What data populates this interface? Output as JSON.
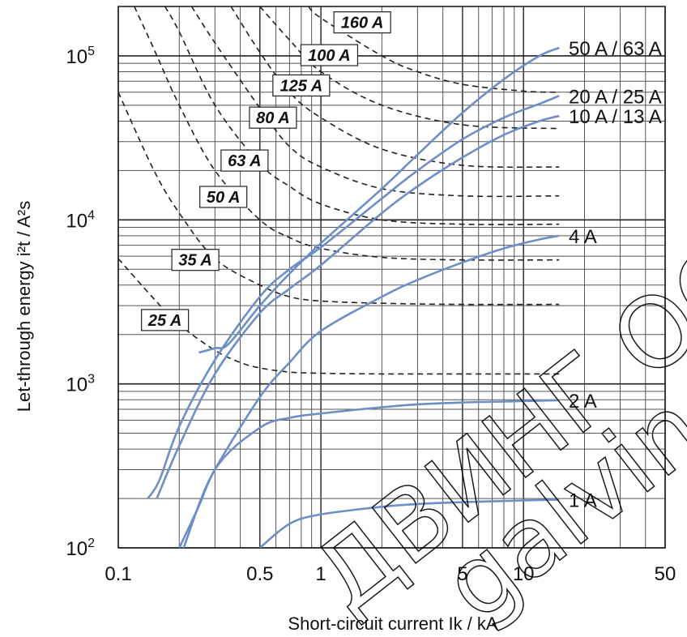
{
  "chart_data": {
    "type": "line",
    "xscale": "log",
    "yscale": "log",
    "xlim": [
      0.1,
      50
    ],
    "ylim": [
      100,
      200000
    ],
    "grid": true,
    "xlabel": "Short-circuit current Ik / kA",
    "ylabel": "Let-through energy i²t / A²s",
    "xticks": [
      {
        "value": 0.1,
        "label": "0.1"
      },
      {
        "value": 0.5,
        "label": "0.5"
      },
      {
        "value": 1,
        "label": "1"
      },
      {
        "value": 5,
        "label": "5"
      },
      {
        "value": 10,
        "label": "10"
      },
      {
        "value": 50,
        "label": "50"
      }
    ],
    "yticks": [
      {
        "value": 100,
        "base": "10",
        "exp": "2"
      },
      {
        "value": 1000,
        "base": "10",
        "exp": "3"
      },
      {
        "value": 10000,
        "base": "10",
        "exp": "4"
      },
      {
        "value": 100000,
        "base": "10",
        "exp": "5"
      }
    ],
    "colors": {
      "mcb": "#6e8ec8",
      "fuse": "#222222",
      "grid": "#555555"
    },
    "series": [
      {
        "name": "50 A / 63 A",
        "style": "solid",
        "x": [
          0.25,
          0.3,
          0.35,
          0.5,
          0.7,
          1,
          2,
          3,
          5,
          8,
          12,
          15
        ],
        "y": [
          1550,
          1650,
          1750,
          3000,
          4700,
          7200,
          15500,
          25000,
          45000,
          72000,
          100000,
          112000
        ]
      },
      {
        "name": "20 A / 25 A",
        "style": "solid",
        "x": [
          0.14,
          0.16,
          0.2,
          0.3,
          0.5,
          0.7,
          1,
          2,
          3,
          5,
          8,
          12,
          15
        ],
        "y": [
          200,
          260,
          550,
          1400,
          3400,
          5000,
          6800,
          13500,
          20000,
          31000,
          42000,
          51000,
          57000
        ]
      },
      {
        "name": "10 A / 13 A",
        "style": "solid",
        "x": [
          0.155,
          0.2,
          0.3,
          0.5,
          0.7,
          1,
          2,
          3,
          5,
          8,
          12,
          15
        ],
        "y": [
          200,
          420,
          1150,
          2700,
          3800,
          5300,
          11000,
          16000,
          24000,
          33000,
          40000,
          43000
        ]
      },
      {
        "name": "4 A",
        "style": "solid",
        "x": [
          0.2,
          0.25,
          0.3,
          0.5,
          0.7,
          1,
          2,
          3,
          5,
          8,
          12,
          15
        ],
        "y": [
          100,
          180,
          300,
          830,
          1350,
          2100,
          3400,
          4300,
          5500,
          6700,
          7600,
          8000
        ]
      },
      {
        "name": "2 A",
        "style": "solid",
        "x": [
          0.21,
          0.3,
          0.5,
          0.7,
          1,
          2,
          3,
          5,
          8,
          12,
          15
        ],
        "y": [
          100,
          300,
          540,
          620,
          660,
          720,
          750,
          770,
          780,
          790,
          795
        ]
      },
      {
        "name": "1 A",
        "style": "solid",
        "x": [
          0.5,
          0.7,
          1,
          2,
          3,
          5,
          8,
          12,
          15
        ],
        "y": [
          100,
          140,
          160,
          178,
          185,
          190,
          193,
          196,
          197
        ]
      },
      {
        "name": "25 A",
        "style": "dashed",
        "x": [
          0.1,
          0.15,
          0.2,
          0.3,
          0.4,
          0.5,
          0.7,
          1,
          2,
          5,
          15
        ],
        "y": [
          5800,
          3300,
          2300,
          1600,
          1350,
          1250,
          1180,
          1160,
          1150,
          1150,
          1150
        ]
      },
      {
        "name": "35 A",
        "style": "dashed",
        "x": [
          0.1,
          0.15,
          0.2,
          0.3,
          0.5,
          0.7,
          1,
          2,
          5,
          15
        ],
        "y": [
          60000,
          20000,
          11000,
          5800,
          4000,
          3400,
          3200,
          3100,
          3050,
          3050
        ]
      },
      {
        "name": "50 A",
        "style": "dashed",
        "x": [
          0.12,
          0.15,
          0.2,
          0.3,
          0.5,
          0.7,
          1,
          2,
          5,
          15
        ],
        "y": [
          200000,
          110000,
          50000,
          20000,
          10000,
          7800,
          6700,
          5900,
          5700,
          5700
        ]
      },
      {
        "name": "63 A",
        "style": "dashed",
        "x": [
          0.17,
          0.2,
          0.3,
          0.5,
          0.7,
          1,
          2,
          5,
          15
        ],
        "y": [
          200000,
          140000,
          50000,
          22000,
          16000,
          12500,
          10000,
          9400,
          9400
        ]
      },
      {
        "name": "80 A",
        "style": "dashed",
        "x": [
          0.23,
          0.3,
          0.5,
          0.7,
          1,
          2,
          5,
          15
        ],
        "y": [
          200000,
          120000,
          48000,
          28000,
          21000,
          15500,
          14000,
          14000
        ]
      },
      {
        "name": "125 A",
        "style": "dashed",
        "x": [
          0.36,
          0.5,
          0.7,
          1,
          2,
          5,
          15
        ],
        "y": [
          200000,
          105000,
          60000,
          42000,
          27000,
          21500,
          21000
        ]
      },
      {
        "name": "100 A",
        "style": "dashed",
        "x": [
          0.5,
          0.7,
          1,
          2,
          5,
          15
        ],
        "y": [
          200000,
          125000,
          80000,
          50000,
          38000,
          36000
        ]
      },
      {
        "name": "160 A",
        "style": "dashed",
        "x": [
          0.87,
          1,
          2,
          3,
          5,
          10,
          15
        ],
        "y": [
          200000,
          170000,
          100000,
          80000,
          67000,
          61000,
          60000
        ]
      }
    ],
    "fuse_labels": [
      {
        "text": "160 A",
        "x": 1.6,
        "y": 160000
      },
      {
        "text": "100 A",
        "x": 1.1,
        "y": 101000
      },
      {
        "text": "125 A",
        "x": 0.8,
        "y": 66000
      },
      {
        "text": "80 A",
        "x": 0.58,
        "y": 42000
      },
      {
        "text": "63 A",
        "x": 0.42,
        "y": 23000
      },
      {
        "text": "50 A",
        "x": 0.33,
        "y": 13800
      },
      {
        "text": "35 A",
        "x": 0.24,
        "y": 5700
      },
      {
        "text": "25 A",
        "x": 0.17,
        "y": 2450
      }
    ],
    "series_labels": [
      {
        "text": "50 A / 63 A",
        "y": 112000
      },
      {
        "text": "20 A / 25 A",
        "y": 57000
      },
      {
        "text": "10 A / 13 A",
        "y": 43000
      },
      {
        "text": "4 A",
        "y": 8000
      },
      {
        "text": "2 A",
        "y": 795
      },
      {
        "text": "1 A",
        "y": 197
      }
    ]
  },
  "watermarks": [
    "ДВИНГ ООД",
    "galving.com"
  ]
}
